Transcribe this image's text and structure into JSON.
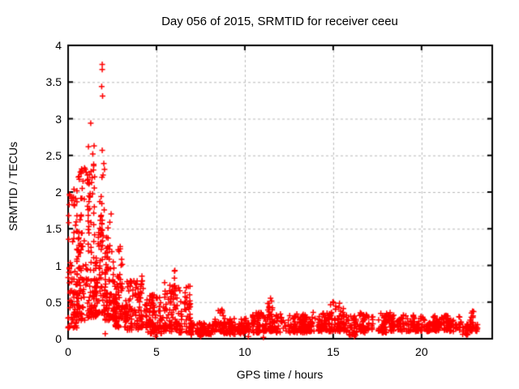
{
  "chart_data": {
    "type": "scatter",
    "title": "Day 056 of 2015, SRMTID for receiver ceeu",
    "xlabel": "GPS time / hours",
    "ylabel": "SRMTID / TECUs",
    "xlim": [
      0,
      24
    ],
    "ylim": [
      0,
      4
    ],
    "xticks": {
      "values": [
        0,
        5,
        10,
        15,
        20
      ],
      "labels": [
        "0",
        "5",
        "10",
        "15",
        "20"
      ]
    },
    "yticks": {
      "values": [
        0,
        0.5,
        1,
        1.5,
        2,
        2.5,
        3,
        3.5,
        4
      ],
      "labels": [
        "0",
        "0.5",
        "1",
        "1.5",
        "2",
        "2.5",
        "3",
        "3.5",
        "4"
      ]
    },
    "grid": {
      "shown": true,
      "style": "dashed",
      "at_xticks": true,
      "at_yticks": true
    },
    "legend": null,
    "style": {
      "background": "#ffffff",
      "text_color": "#000000",
      "border_color": "#000000",
      "grid_color": "#b9b9b9",
      "marker_color": "#ff0000",
      "marker": "plus",
      "marker_size_px": 7
    },
    "series": [
      {
        "name": "SRMTID",
        "band_format": [
          "hour_start",
          "hour_end",
          "n_points",
          "y_min",
          "y_max",
          "skew_low",
          "peak_hour_or_null"
        ],
        "point_bands": [
          [
            0.0,
            0.5,
            80,
            0.15,
            2.05,
            1.6,
            null
          ],
          [
            0.5,
            1.0,
            85,
            0.25,
            2.35,
            1.7,
            null
          ],
          [
            1.0,
            1.5,
            85,
            0.28,
            2.6,
            1.8,
            null
          ],
          [
            1.5,
            2.1,
            95,
            0.3,
            2.45,
            1.5,
            1.95
          ],
          [
            2.1,
            2.65,
            95,
            0.25,
            2.15,
            1.4,
            2.3
          ],
          [
            2.65,
            3.25,
            75,
            0.15,
            1.35,
            1.4,
            2.9
          ],
          [
            3.25,
            4.0,
            70,
            0.12,
            0.8,
            1.3,
            null
          ],
          [
            4.0,
            4.45,
            45,
            0.15,
            1.05,
            1.8,
            4.2
          ],
          [
            4.45,
            5.3,
            90,
            0.07,
            0.6,
            1.6,
            null
          ],
          [
            5.3,
            5.85,
            45,
            0.1,
            0.78,
            1.7,
            null
          ],
          [
            5.85,
            6.25,
            45,
            0.12,
            1.06,
            1.7,
            6.0
          ],
          [
            6.25,
            6.95,
            55,
            0.08,
            0.72,
            1.8,
            null
          ],
          [
            6.95,
            8.3,
            95,
            0.05,
            0.22,
            1.2,
            null
          ],
          [
            8.3,
            9.0,
            55,
            0.07,
            0.48,
            1.5,
            8.6
          ],
          [
            9.0,
            9.85,
            65,
            0.06,
            0.28,
            1.3,
            null
          ],
          [
            9.85,
            10.35,
            35,
            0.07,
            0.38,
            1.4,
            10.05
          ],
          [
            10.35,
            11.05,
            50,
            0.08,
            0.36,
            1.4,
            null
          ],
          [
            11.05,
            11.75,
            60,
            0.1,
            0.62,
            1.5,
            11.43
          ],
          [
            11.75,
            13.55,
            130,
            0.08,
            0.35,
            1.3,
            null
          ],
          [
            13.55,
            14.35,
            55,
            0.1,
            0.5,
            1.5,
            13.95
          ],
          [
            14.35,
            14.75,
            30,
            0.1,
            0.35,
            1.3,
            null
          ],
          [
            14.75,
            15.25,
            45,
            0.1,
            0.72,
            1.6,
            15.0
          ],
          [
            15.25,
            15.75,
            40,
            0.1,
            0.56,
            1.5,
            15.45
          ],
          [
            15.75,
            16.45,
            45,
            0.04,
            0.32,
            1.3,
            null
          ],
          [
            16.45,
            18.25,
            110,
            0.08,
            0.36,
            1.3,
            null
          ],
          [
            18.25,
            19.6,
            90,
            0.1,
            0.33,
            1.2,
            null
          ],
          [
            19.6,
            20.6,
            70,
            0.1,
            0.38,
            1.3,
            20.1
          ],
          [
            20.6,
            22.3,
            110,
            0.1,
            0.32,
            1.2,
            null
          ],
          [
            22.3,
            22.62,
            18,
            0.05,
            0.2,
            1.2,
            null
          ],
          [
            22.62,
            23.2,
            38,
            0.1,
            0.42,
            1.3,
            22.9
          ]
        ],
        "notable_points": [
          [
            1.93,
            3.74
          ],
          [
            1.93,
            3.67
          ],
          [
            1.9,
            3.44
          ],
          [
            1.95,
            3.31
          ],
          [
            1.28,
            2.94
          ],
          [
            1.15,
            2.62
          ],
          [
            1.47,
            2.63
          ],
          [
            1.93,
            2.57
          ],
          [
            0.97,
            2.31
          ],
          [
            1.02,
            2.27
          ],
          [
            0.93,
            2.33
          ],
          [
            1.45,
            2.36
          ],
          [
            2.02,
            2.39
          ],
          [
            2.06,
            2.31
          ],
          [
            0.33,
            2.04
          ],
          [
            0.08,
            1.97
          ],
          [
            2.1,
            0.07
          ],
          [
            4.95,
            0.03
          ],
          [
            7.5,
            0.03
          ],
          [
            10.2,
            0.03
          ],
          [
            11.05,
            0.02
          ],
          [
            16.2,
            0.03
          ]
        ]
      }
    ],
    "render": {
      "seed": 56,
      "column_jitter_hours": 0.06,
      "points_per_column_max": 5
    }
  }
}
